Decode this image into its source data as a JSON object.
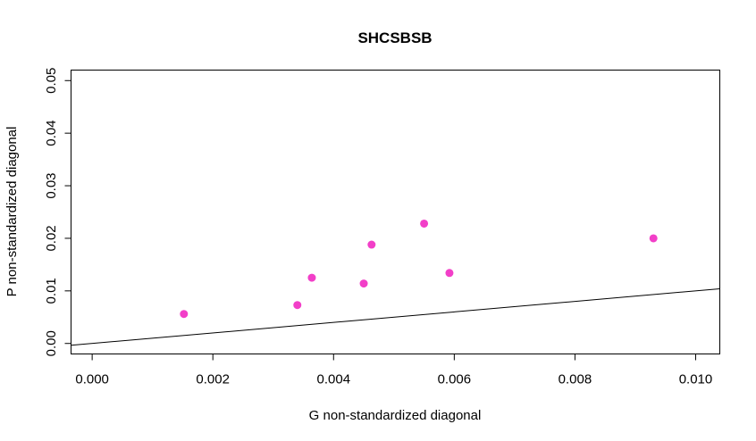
{
  "chart_data": {
    "type": "scatter",
    "title": "SHCSBSB",
    "xlabel": "G non-standardized diagonal",
    "ylabel": "P non-standardized diagonal",
    "xlim": [
      -0.00035,
      0.0104
    ],
    "ylim": [
      -0.002,
      0.052
    ],
    "x_ticks": [
      0.0,
      0.002,
      0.004,
      0.006,
      0.008,
      0.01
    ],
    "x_tick_labels": [
      "0.000",
      "0.002",
      "0.004",
      "0.006",
      "0.008",
      "0.010"
    ],
    "y_ticks": [
      0.0,
      0.01,
      0.02,
      0.03,
      0.04,
      0.05
    ],
    "y_tick_labels": [
      "0.00",
      "0.01",
      "0.02",
      "0.03",
      "0.04",
      "0.05"
    ],
    "grid": false,
    "point_color": "#f23fc8",
    "points": [
      {
        "x": 0.00152,
        "y": 0.0056
      },
      {
        "x": 0.0034,
        "y": 0.0073
      },
      {
        "x": 0.00364,
        "y": 0.0125
      },
      {
        "x": 0.0045,
        "y": 0.0114
      },
      {
        "x": 0.00463,
        "y": 0.0188
      },
      {
        "x": 0.0055,
        "y": 0.0228
      },
      {
        "x": 0.00592,
        "y": 0.0134
      },
      {
        "x": 0.0093,
        "y": 0.02
      }
    ],
    "reference_line": {
      "intercept": 0,
      "slope": 1
    }
  }
}
